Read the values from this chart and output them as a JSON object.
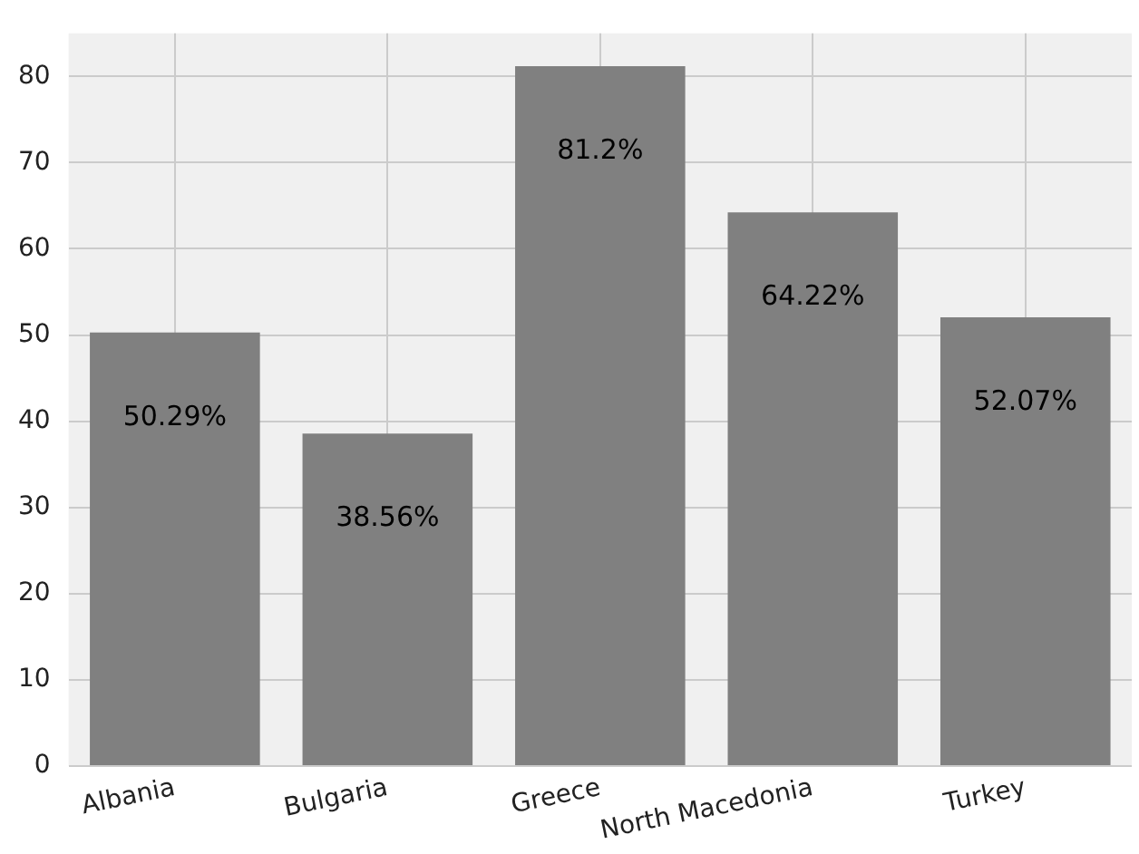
{
  "chart_data": {
    "type": "bar",
    "categories": [
      "Albania",
      "Bulgaria",
      "Greece",
      "North Macedonia",
      "Turkey"
    ],
    "values": [
      50.29,
      38.56,
      81.2,
      64.22,
      52.07
    ],
    "value_labels": [
      "50.29%",
      "38.56%",
      "81.2%",
      "64.22%",
      "52.07%"
    ],
    "color": "#808080",
    "ylim": [
      0,
      85
    ],
    "yticks": [
      0,
      10,
      20,
      30,
      40,
      50,
      60,
      70,
      80
    ],
    "grid": true
  }
}
